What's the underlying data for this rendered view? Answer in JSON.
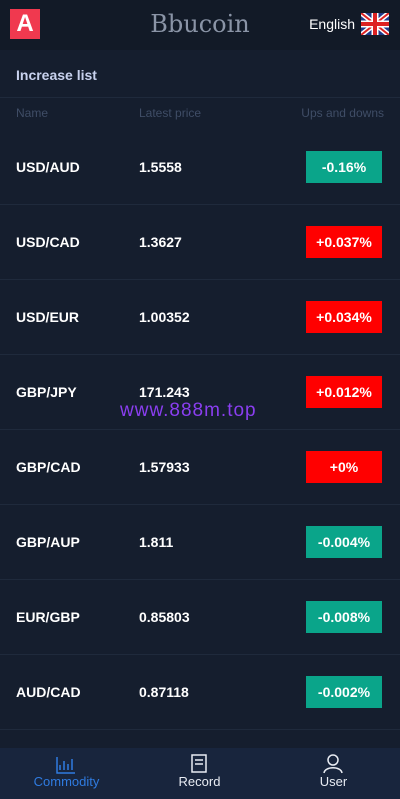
{
  "header": {
    "logo_letter": "A",
    "brand": "Bbucoin",
    "language": "English"
  },
  "section_title": "Increase list",
  "columns": [
    "Name",
    "Latest price",
    "Ups and downs"
  ],
  "rows": [
    {
      "name": "USD/AUD",
      "price": "1.5558",
      "change": "-0.16%",
      "color": "#0aa58a"
    },
    {
      "name": "USD/CAD",
      "price": "1.3627",
      "change": "+0.037%",
      "color": "#ff0000"
    },
    {
      "name": "USD/EUR",
      "price": "1.00352",
      "change": "+0.034%",
      "color": "#ff0000"
    },
    {
      "name": "GBP/JPY",
      "price": "171.243",
      "change": "+0.012%",
      "color": "#ff0000"
    },
    {
      "name": "GBP/CAD",
      "price": "1.57933",
      "change": "+0%",
      "color": "#ff0000"
    },
    {
      "name": "GBP/AUP",
      "price": "1.811",
      "change": "-0.004%",
      "color": "#0aa58a"
    },
    {
      "name": "EUR/GBP",
      "price": "0.85803",
      "change": "-0.008%",
      "color": "#0aa58a"
    },
    {
      "name": "AUD/CAD",
      "price": "0.87118",
      "change": "-0.002%",
      "color": "#0aa58a"
    }
  ],
  "watermark": "www.888m.top",
  "nav": [
    "Commodity",
    "Record",
    "User"
  ]
}
